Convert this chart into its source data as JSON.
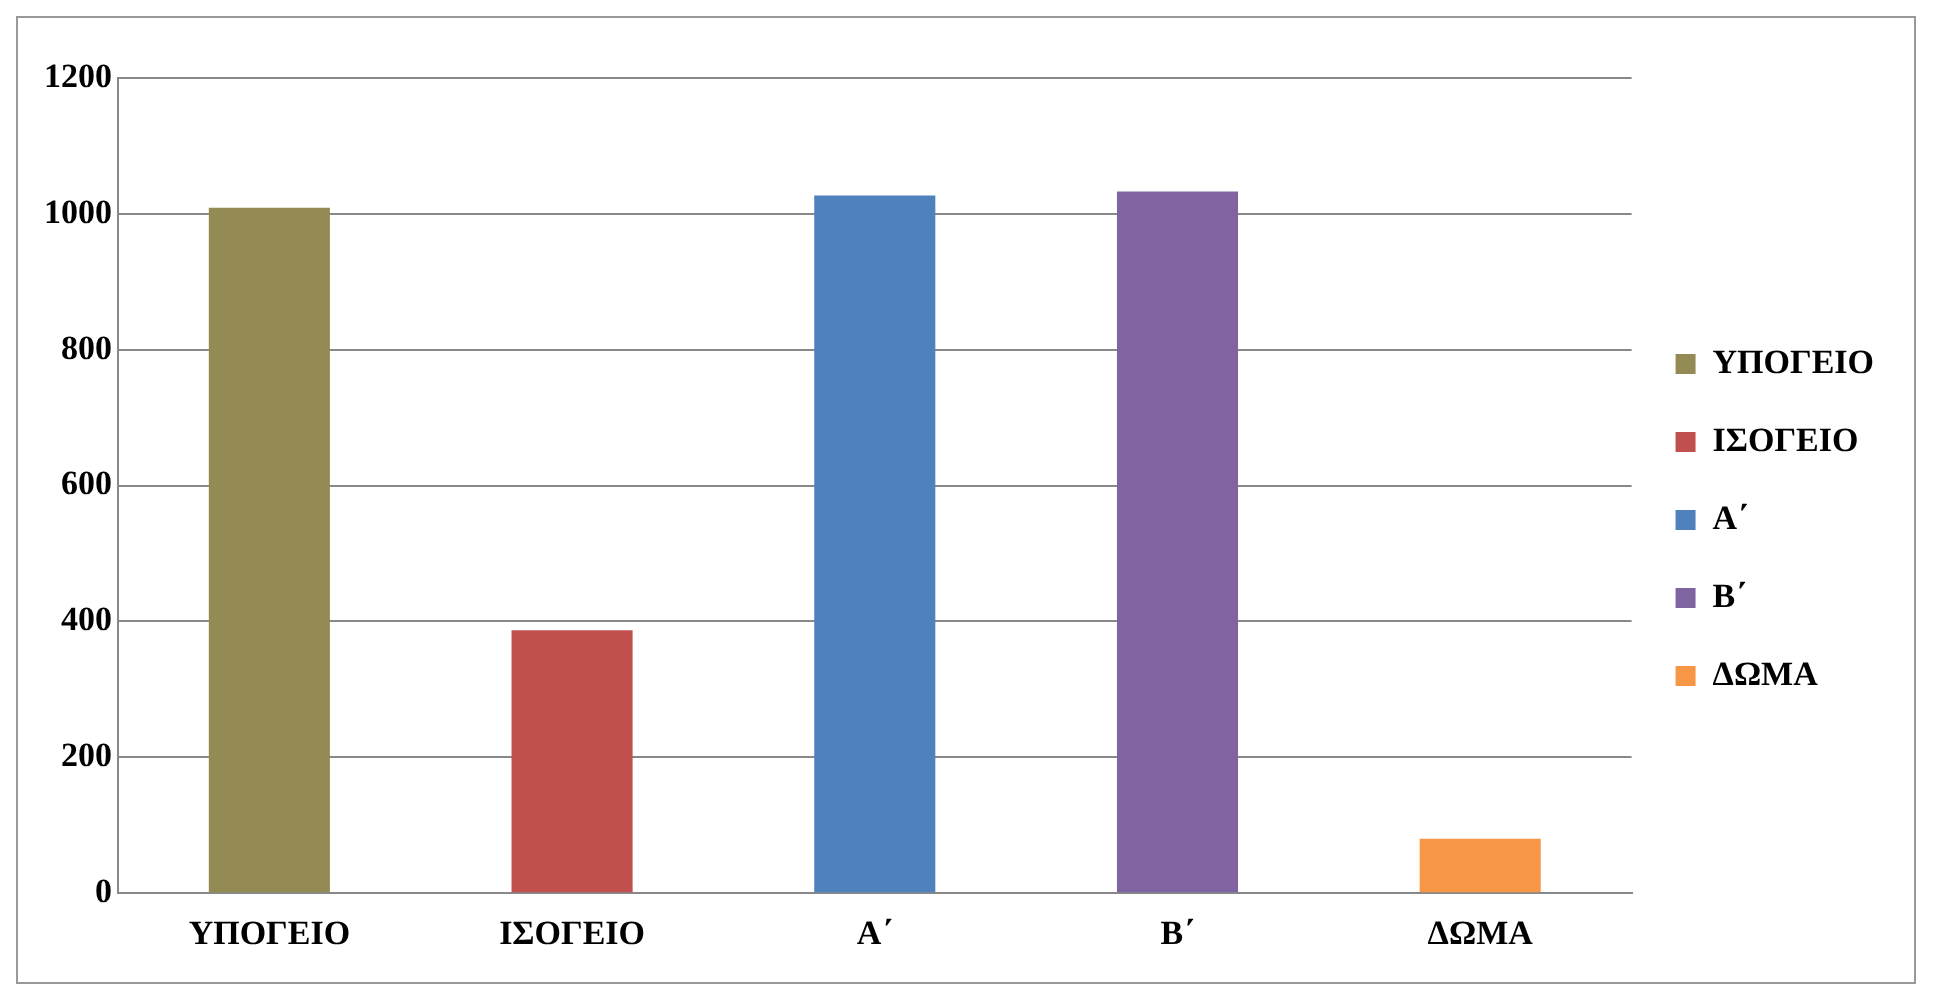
{
  "chart_data": {
    "type": "bar",
    "categories": [
      "ΥΠΟΓΕΙΟ",
      "ΙΣΟΓΕΙΟ",
      "Α΄",
      "Β΄",
      "ΔΩΜΑ"
    ],
    "series": [
      {
        "name": "ΥΠΟΓΕΙΟ",
        "color": "#948a54",
        "values": [
          1009,
          null,
          null,
          null,
          null
        ]
      },
      {
        "name": "ΙΣΟΓΕΙΟ",
        "color": "#c0504d",
        "values": [
          null,
          387,
          null,
          null,
          null
        ]
      },
      {
        "name": "Α΄",
        "color": "#4f81bd",
        "values": [
          null,
          null,
          1027,
          null,
          null
        ]
      },
      {
        "name": "Β΄",
        "color": "#8064a2",
        "values": [
          null,
          null,
          null,
          1033,
          null
        ]
      },
      {
        "name": "ΔΩΜΑ",
        "color": "#f79646",
        "values": [
          null,
          null,
          null,
          null,
          80
        ]
      }
    ],
    "ylim": [
      0,
      1200
    ],
    "yticks": [
      0,
      200,
      400,
      600,
      800,
      1000,
      1200
    ],
    "grid": "y",
    "legend": "right"
  }
}
